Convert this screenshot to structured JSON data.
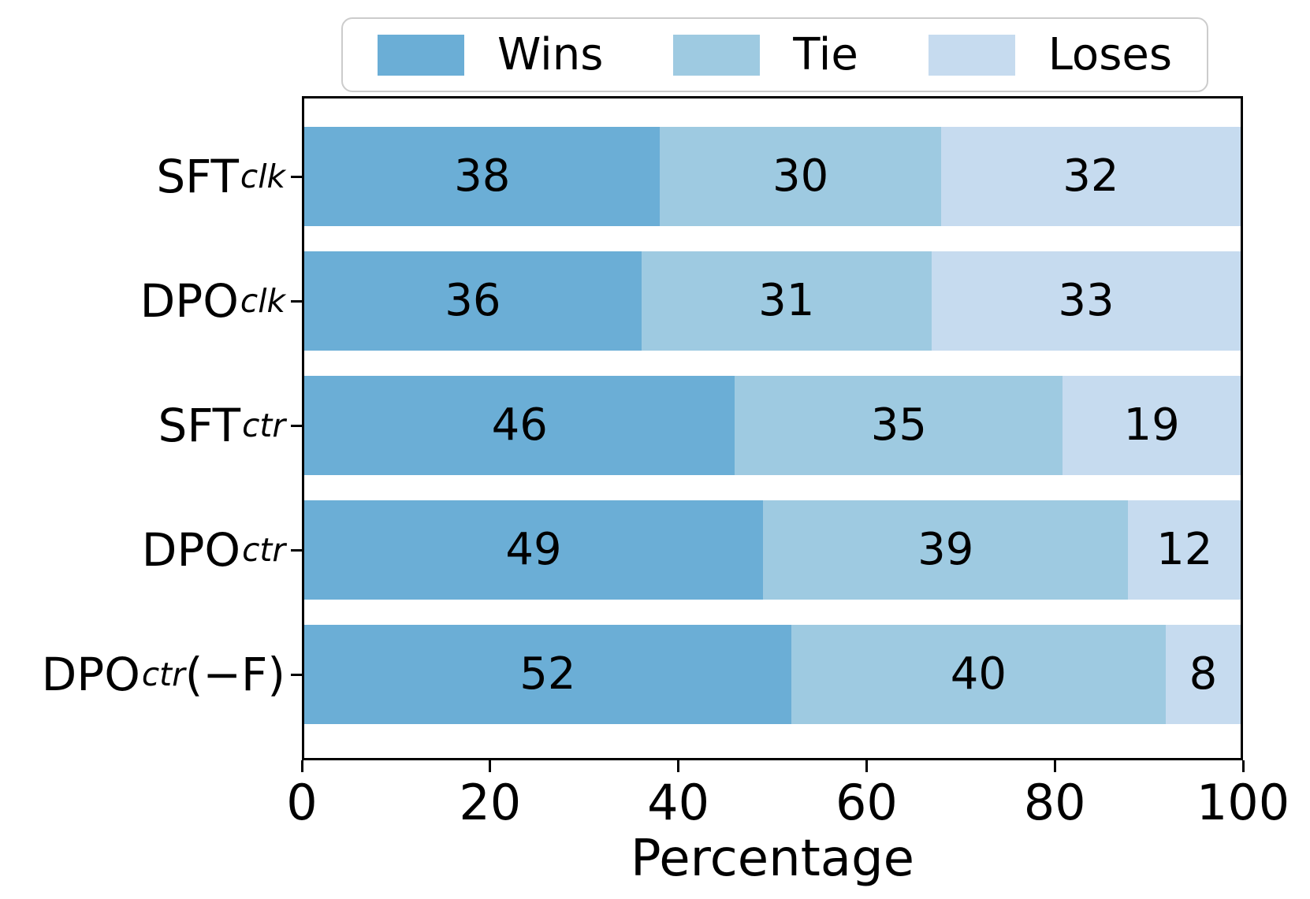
{
  "chart_data": {
    "type": "bar",
    "orientation": "horizontal-stacked",
    "title": "",
    "xlabel": "Percentage",
    "xlim": [
      0,
      100
    ],
    "x_ticks": [
      0,
      20,
      40,
      60,
      80,
      100
    ],
    "grid": false,
    "legend_position": "top",
    "categories": [
      {
        "base": "SFT",
        "sub": "clk",
        "suffix": ""
      },
      {
        "base": "DPO",
        "sub": "clk",
        "suffix": ""
      },
      {
        "base": "SFT",
        "sub": "ctr",
        "suffix": ""
      },
      {
        "base": "DPO",
        "sub": "ctr",
        "suffix": ""
      },
      {
        "base": "DPO",
        "sub": "ctr",
        "suffix": "(−F)"
      }
    ],
    "series": [
      {
        "name": "Wins",
        "color": "#6baed6",
        "values": [
          38,
          36,
          46,
          49,
          52
        ]
      },
      {
        "name": "Tie",
        "color": "#9ecae1",
        "values": [
          30,
          31,
          35,
          39,
          40
        ]
      },
      {
        "name": "Loses",
        "color": "#c6dbef",
        "values": [
          32,
          33,
          19,
          12,
          8
        ]
      }
    ]
  },
  "colors": {
    "wins": "#6baed6",
    "tie": "#9ecae1",
    "loses": "#c6dbef",
    "frame": "#000000",
    "legend_border": "#cccccc",
    "background": "#ffffff",
    "text": "#000000"
  }
}
